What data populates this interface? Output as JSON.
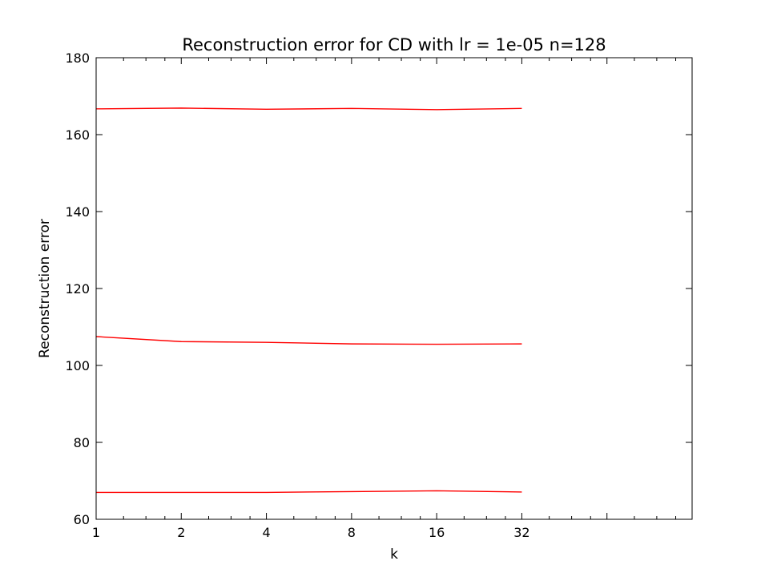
{
  "chart_data": {
    "type": "line",
    "title": "Reconstruction error for CD with lr = 1e-05 n=128",
    "xlabel": "k",
    "ylabel": "Reconstruction error",
    "x_scale": "log2",
    "x": [
      1,
      2,
      4,
      8,
      16,
      32
    ],
    "x_ticks": [
      "1",
      "2",
      "4",
      "8",
      "16",
      "32"
    ],
    "xlim": [
      1,
      128
    ],
    "ylim": [
      60,
      180
    ],
    "y_ticks": [
      60,
      80,
      100,
      120,
      140,
      160,
      180
    ],
    "grid": false,
    "line_color": "#ff0000",
    "series": [
      {
        "values": [
          166.7,
          166.9,
          166.6,
          166.8,
          166.5,
          166.8
        ]
      },
      {
        "values": [
          107.5,
          106.2,
          106.0,
          105.6,
          105.5,
          105.6
        ]
      },
      {
        "values": [
          67.0,
          67.0,
          67.0,
          67.2,
          67.4,
          67.1
        ]
      }
    ]
  }
}
